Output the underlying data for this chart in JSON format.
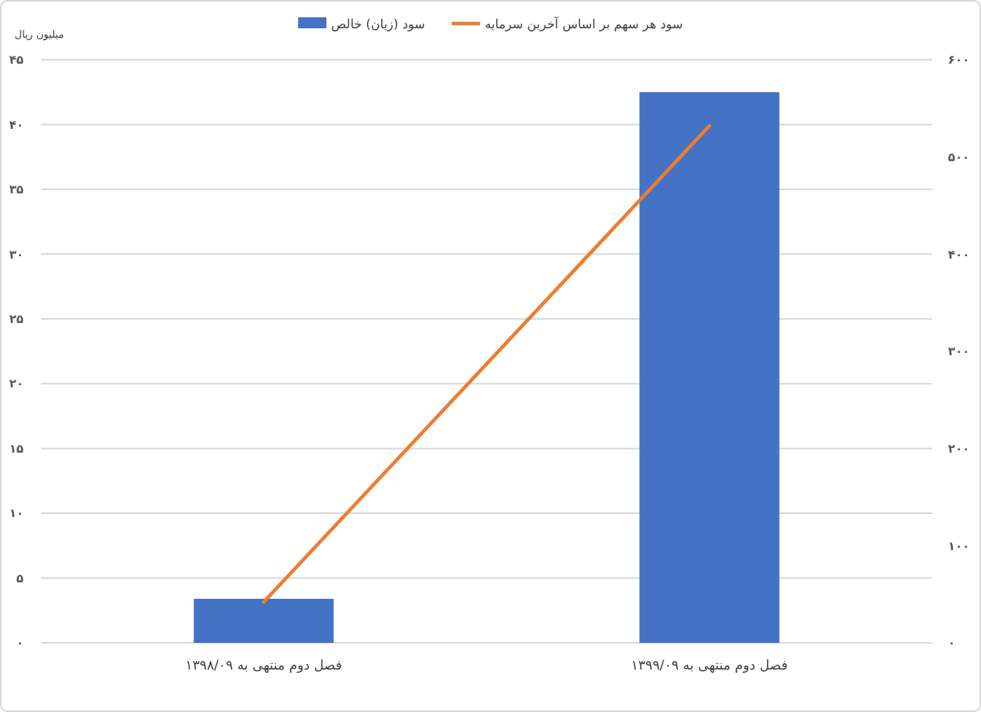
{
  "chart_data": {
    "type": "bar",
    "ylabel": "میلیون ریال",
    "categories": [
      "فصل دوم منتهی به ۱۳۹۸/۰۹",
      "فصل دوم منتهی به ۱۳۹۹/۰۹"
    ],
    "series": [
      {
        "name": "سود (زیان) خالص",
        "color": "#4472c4",
        "values": [
          3.4,
          42.5
        ]
      },
      {
        "name": "سود هر سهم بر اساس آخرین سرمایه",
        "type": "line",
        "axis": "y2",
        "color": "#ed7d31",
        "values": [
          42,
          532
        ]
      }
    ],
    "ylim": [
      0,
      45
    ],
    "yticks": [
      {
        "value": 0,
        "label": "۰"
      },
      {
        "value": 5,
        "label": "۵"
      },
      {
        "value": 10,
        "label": "۱۰"
      },
      {
        "value": 15,
        "label": "۱۵"
      },
      {
        "value": 20,
        "label": "۲۰"
      },
      {
        "value": 25,
        "label": "۲۵"
      },
      {
        "value": 30,
        "label": "۳۰"
      },
      {
        "value": 35,
        "label": "۳۵"
      },
      {
        "value": 40,
        "label": "۴۰"
      },
      {
        "value": 45,
        "label": "۴۵"
      }
    ],
    "y2lim": [
      0,
      600
    ],
    "y2ticks": [
      {
        "value": 0,
        "label": "۰"
      },
      {
        "value": 100,
        "label": "۱۰۰"
      },
      {
        "value": 200,
        "label": "۲۰۰"
      },
      {
        "value": 300,
        "label": "۳۰۰"
      },
      {
        "value": 400,
        "label": "۴۰۰"
      },
      {
        "value": 500,
        "label": "۵۰۰"
      },
      {
        "value": 600,
        "label": "۶۰۰"
      }
    ],
    "grid": "y",
    "legend": "top"
  }
}
